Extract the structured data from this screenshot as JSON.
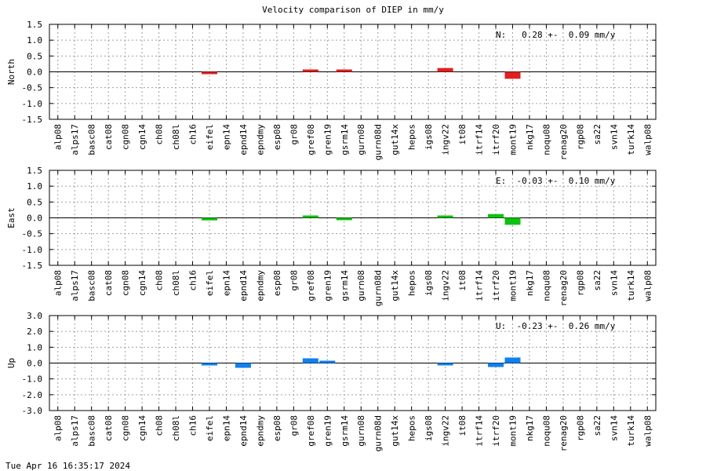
{
  "title": "Velocity comparison of DIEP in mm/y",
  "footer": "Tue Apr 16 16:35:17 2024",
  "chart_data": {
    "type": "bar",
    "categories": [
      "alp08",
      "alps17",
      "basc08",
      "cat08",
      "cgn08",
      "cgn14",
      "ch08",
      "ch08l",
      "ch16",
      "eifel",
      "epn14",
      "epnd14",
      "epndmy",
      "esp08",
      "gr08",
      "gref08",
      "gren19",
      "gsrm14",
      "gurn08",
      "gurn08d",
      "gut14x",
      "hepos",
      "igs08",
      "ingv22",
      "it08",
      "itrf14",
      "itrf20",
      "mont19",
      "nkg17",
      "noqu08",
      "renag20",
      "rgp08",
      "sa22",
      "svn14",
      "turk14",
      "walp08"
    ],
    "grid": true,
    "panels": [
      {
        "ylabel": "North",
        "color": "#e02020",
        "ylim": [
          -1.5,
          1.5
        ],
        "yticks": [
          1.5,
          1.0,
          0.5,
          0.0,
          -0.5,
          -1.0,
          -1.5
        ],
        "tick_labels": [
          "1.5",
          "1.0",
          "0.5",
          "0.0",
          "-0.5",
          "-1.0",
          "-1.5"
        ],
        "summary": "N:   0.28 +-  0.09 mm/y",
        "values": [
          null,
          null,
          null,
          null,
          null,
          null,
          null,
          null,
          null,
          -0.03,
          null,
          null,
          null,
          null,
          null,
          0.06,
          null,
          0.01,
          null,
          null,
          null,
          null,
          null,
          0.12,
          null,
          null,
          null,
          -0.22,
          null,
          null,
          null,
          null,
          null,
          null,
          null,
          null
        ]
      },
      {
        "ylabel": "East",
        "color": "#10c010",
        "ylim": [
          -1.5,
          1.5
        ],
        "yticks": [
          1.5,
          1.0,
          0.5,
          0.0,
          -0.5,
          -1.0,
          -1.5
        ],
        "tick_labels": [
          "1.5",
          "1.0",
          "0.5",
          "0.0",
          "-0.5",
          "-1.0",
          "-1.5"
        ],
        "summary": "E:  -0.03 +-  0.10 mm/y",
        "values": [
          null,
          null,
          null,
          null,
          null,
          null,
          null,
          null,
          null,
          -0.08,
          null,
          null,
          null,
          null,
          null,
          0.05,
          null,
          -0.02,
          null,
          null,
          null,
          null,
          null,
          0.02,
          null,
          null,
          0.12,
          -0.22,
          null,
          null,
          null,
          null,
          null,
          null,
          null,
          null
        ]
      },
      {
        "ylabel": "Up",
        "color": "#1080f0",
        "ylim": [
          -3.0,
          3.0
        ],
        "yticks": [
          3.0,
          2.0,
          1.0,
          0.0,
          -1.0,
          -2.0,
          -3.0
        ],
        "tick_labels": [
          "3.0",
          "2.0",
          "1.0",
          "0.0",
          "-1.0",
          "-2.0",
          "-3.0"
        ],
        "summary": "U:  -0.23 +-  0.26 mm/y",
        "values": [
          null,
          null,
          null,
          null,
          null,
          null,
          null,
          null,
          null,
          -0.15,
          null,
          -0.3,
          null,
          null,
          null,
          0.3,
          0.15,
          null,
          null,
          null,
          null,
          null,
          null,
          -0.05,
          null,
          null,
          -0.25,
          0.35,
          null,
          null,
          null,
          null,
          null,
          null,
          null,
          null
        ]
      }
    ]
  }
}
